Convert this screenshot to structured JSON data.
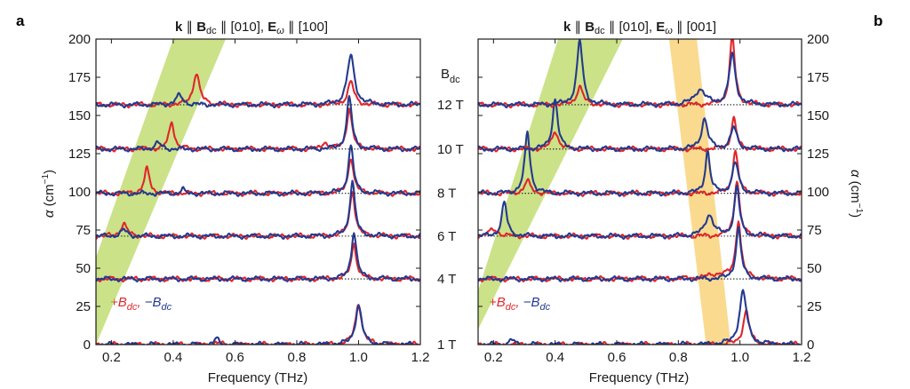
{
  "chart_data": [
    {
      "type": "line",
      "panel": "a",
      "title": "k ∥ B_dc ∥ [010], E_ω ∥ [100]",
      "title_parts": [
        "k",
        "∥",
        "B",
        "dc",
        "∥ [010],",
        "E",
        "ω",
        "∥ [100]"
      ],
      "xlabel": "Frequency (THz)",
      "ylabel": "α (cm⁻¹)",
      "ylabel_parts": [
        "α",
        "(cm",
        "−1",
        ")"
      ],
      "xlim": [
        0.15,
        1.2
      ],
      "ylim": [
        0,
        200
      ],
      "xticks": [
        "0.2",
        "0.4",
        "0.6",
        "0.8",
        "1.0",
        "1.2"
      ],
      "yticks": [
        "0",
        "25",
        "50",
        "75",
        "100",
        "125",
        "150",
        "175",
        "200"
      ],
      "legend": {
        "plus": "+B",
        "plus_sub": "dc",
        "sep": ",",
        "minus": "−B",
        "minus_sub": "dc"
      },
      "fields": [
        "1 T",
        "4 T",
        "6 T",
        "8 T",
        "10 T",
        "12 T"
      ],
      "baselines": [
        0,
        43,
        71,
        99,
        128,
        157
      ],
      "series": [
        {
          "field": "1 T",
          "plus_peaks": [
            [
              1.0,
              27,
              0.012
            ],
            [
              0.54,
              1.5,
              0.01
            ]
          ],
          "minus_peaks": [
            [
              1.0,
              26,
              0.012
            ],
            [
              0.54,
              4,
              0.008
            ]
          ]
        },
        {
          "field": "4 T",
          "plus_peaks": [
            [
              0.985,
              23,
              0.01
            ]
          ],
          "minus_peaks": [
            [
              0.985,
              31,
              0.01
            ]
          ]
        },
        {
          "field": "6 T",
          "plus_peaks": [
            [
              0.98,
              30,
              0.01
            ],
            [
              0.24,
              8,
              0.012
            ]
          ],
          "minus_peaks": [
            [
              0.98,
              36,
              0.01
            ],
            [
              0.24,
              4,
              0.012
            ]
          ]
        },
        {
          "field": "8 T",
          "plus_peaks": [
            [
              0.975,
              24,
              0.01
            ],
            [
              0.315,
              16,
              0.01
            ]
          ],
          "minus_peaks": [
            [
              0.975,
              31,
              0.01
            ],
            [
              0.43,
              3,
              0.006
            ]
          ]
        },
        {
          "field": "10 T",
          "plus_peaks": [
            [
              0.97,
              27,
              0.01
            ],
            [
              0.395,
              18,
              0.01
            ],
            [
              0.89,
              5,
              0.008
            ]
          ],
          "minus_peaks": [
            [
              0.97,
              34,
              0.01
            ],
            [
              0.35,
              4,
              0.012
            ]
          ]
        },
        {
          "field": "12 T",
          "plus_peaks": [
            [
              0.975,
              15,
              0.012
            ],
            [
              0.475,
              21,
              0.012
            ]
          ],
          "minus_peaks": [
            [
              0.975,
              32,
              0.014
            ],
            [
              0.42,
              6,
              0.014
            ]
          ]
        }
      ],
      "band": {
        "color": "#a9cf38",
        "opacity": 0.6,
        "corners": [
          [
            0.12,
            40
          ],
          [
            0.4,
            200
          ],
          [
            0.57,
            200
          ],
          [
            0.15,
            0
          ]
        ]
      }
    },
    {
      "type": "line",
      "panel": "b",
      "title": "k ∥ B_dc ∥ [010], E_ω ∥ [001]",
      "title_parts": [
        "k",
        "∥",
        "B",
        "dc",
        "∥ [010],",
        "E",
        "ω",
        "∥ [001]"
      ],
      "xlabel": "Frequency (THz)",
      "ylabel": "α (cm⁻¹)",
      "ylabel_parts": [
        "α",
        "(cm",
        "−1",
        ")"
      ],
      "xlim": [
        0.15,
        1.2
      ],
      "ylim": [
        0,
        200
      ],
      "xticks": [
        "0.2",
        "0.4",
        "0.6",
        "0.8",
        "1.0",
        "1.2"
      ],
      "yticks": [
        "0",
        "25",
        "50",
        "75",
        "100",
        "125",
        "150",
        "175",
        "200"
      ],
      "legend": {
        "plus": "+B",
        "plus_sub": "dc",
        "sep": ",",
        "minus": "−B",
        "minus_sub": "dc"
      },
      "fields": [
        "1 T",
        "4 T",
        "6 T",
        "8 T",
        "10 T",
        "12 T"
      ],
      "baselines": [
        0,
        43,
        71,
        99,
        128,
        157
      ],
      "series": [
        {
          "field": "1 T",
          "plus_peaks": [
            [
              1.02,
              22,
              0.012
            ]
          ],
          "minus_peaks": [
            [
              1.01,
              35,
              0.014
            ],
            [
              0.26,
              3,
              0.01
            ]
          ]
        },
        {
          "field": "4 T",
          "plus_peaks": [
            [
              0.995,
              38,
              0.01
            ],
            [
              0.93,
              3,
              0.04
            ]
          ],
          "minus_peaks": [
            [
              0.995,
              33,
              0.01
            ]
          ]
        },
        {
          "field": "6 T",
          "plus_peaks": [
            [
              0.99,
              37,
              0.01
            ],
            [
              0.2,
              4,
              0.02
            ]
          ],
          "minus_peaks": [
            [
              0.99,
              32,
              0.01
            ],
            [
              0.235,
              22,
              0.01
            ],
            [
              0.9,
              14,
              0.016
            ]
          ]
        },
        {
          "field": "8 T",
          "plus_peaks": [
            [
              0.985,
              28,
              0.01
            ],
            [
              0.31,
              8,
              0.012
            ]
          ],
          "minus_peaks": [
            [
              0.985,
              20,
              0.012
            ],
            [
              0.31,
              40,
              0.01
            ],
            [
              0.895,
              28,
              0.009
            ]
          ]
        },
        {
          "field": "10 T",
          "plus_peaks": [
            [
              0.98,
              20,
              0.01
            ],
            [
              0.4,
              12,
              0.012
            ]
          ],
          "minus_peaks": [
            [
              0.98,
              14,
              0.012
            ],
            [
              0.4,
              33,
              0.01
            ],
            [
              0.885,
              20,
              0.012
            ]
          ]
        },
        {
          "field": "12 T",
          "plus_peaks": [
            [
              0.975,
              45,
              0.01
            ],
            [
              0.48,
              12,
              0.012
            ]
          ],
          "minus_peaks": [
            [
              0.975,
              33,
              0.012
            ],
            [
              0.48,
              42,
              0.011
            ],
            [
              0.87,
              10,
              0.02
            ]
          ]
        }
      ],
      "bands": [
        {
          "color": "#a9cf38",
          "opacity": 0.6,
          "corners": [
            [
              0.15,
              35
            ],
            [
              0.41,
              200
            ],
            [
              0.62,
              200
            ],
            [
              0.15,
              10
            ]
          ]
        },
        {
          "color": "#f6c143",
          "opacity": 0.6,
          "corners": [
            [
              0.77,
              200
            ],
            [
              0.86,
              200
            ],
            [
              0.97,
              0
            ],
            [
              0.89,
              0
            ]
          ]
        }
      ]
    }
  ],
  "field_header": {
    "main": "B",
    "sub": "dc"
  },
  "colors": {
    "plus": "#e0262b",
    "minus": "#243a8f",
    "baseline": "#222222"
  }
}
